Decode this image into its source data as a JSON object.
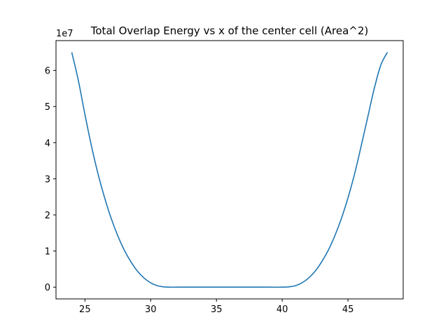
{
  "chart_data": {
    "type": "line",
    "title": "Total Overlap Energy vs x of the center cell (Area^2)",
    "xlabel": "",
    "ylabel": "",
    "y_offset_label": "1e7",
    "xlim": [
      22.8,
      49.2
    ],
    "ylim": [
      -3250000,
      68250000
    ],
    "x_ticks": [
      25,
      30,
      35,
      40,
      45
    ],
    "y_ticks": [
      0,
      10000000,
      20000000,
      30000000,
      40000000,
      50000000,
      60000000
    ],
    "y_tick_labels": [
      "0",
      "1",
      "2",
      "3",
      "4",
      "5",
      "6"
    ],
    "grid": false,
    "legend": "none",
    "series": [
      {
        "color": "#1f77b4",
        "x": [
          24,
          24.5,
          25,
          25.5,
          26,
          26.5,
          27,
          27.5,
          28,
          28.5,
          29,
          29.5,
          30,
          30.5,
          31,
          31.5,
          32,
          33,
          34,
          35,
          36,
          37,
          38,
          39,
          40,
          40.5,
          41,
          41.5,
          42,
          42.5,
          43,
          43.5,
          44,
          44.5,
          45,
          45.5,
          46,
          46.5,
          47,
          47.5,
          48
        ],
        "y": [
          65000000,
          57200000,
          47800000,
          39000000,
          31300000,
          24700000,
          19000000,
          14200000,
          10200000,
          7000000,
          4400000,
          2500000,
          1200000,
          400000,
          80000,
          0,
          0,
          0,
          0,
          0,
          0,
          0,
          0,
          0,
          0,
          80000,
          400000,
          1200000,
          2500000,
          4400000,
          7000000,
          10200000,
          14200000,
          19000000,
          24700000,
          31300000,
          39000000,
          47000000,
          55000000,
          61500000,
          65000000
        ]
      }
    ]
  }
}
